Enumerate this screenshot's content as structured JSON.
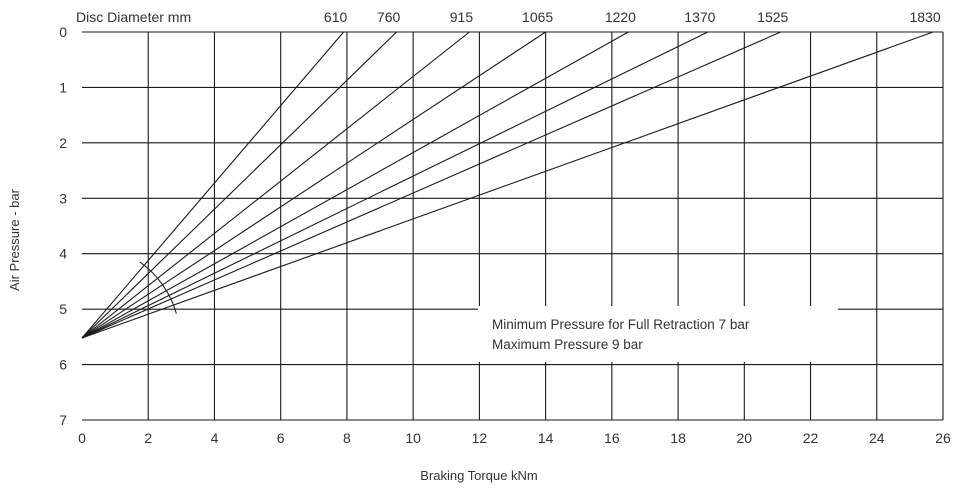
{
  "chart_data": {
    "type": "line",
    "xlabel": "Braking Torque kNm",
    "ylabel": "Air Pressure - bar",
    "xlim": [
      0,
      26
    ],
    "ylim": [
      0,
      7
    ],
    "y_inverted": true,
    "grid": true,
    "x_ticks": [
      0,
      2,
      4,
      6,
      8,
      10,
      12,
      14,
      16,
      18,
      20,
      22,
      24,
      26
    ],
    "y_ticks": [
      0,
      1,
      2,
      3,
      4,
      5,
      6,
      7
    ],
    "top_label": "Disc Diameter mm",
    "origin": {
      "x": 0,
      "y": 5.52
    },
    "series": [
      {
        "name": "610",
        "x": [
          0,
          7.9
        ],
        "y": [
          5.52,
          0
        ]
      },
      {
        "name": "760",
        "x": [
          0,
          9.5
        ],
        "y": [
          5.52,
          0
        ]
      },
      {
        "name": "915",
        "x": [
          0,
          11.7
        ],
        "y": [
          5.52,
          0
        ]
      },
      {
        "name": "1065",
        "x": [
          0,
          14.0
        ],
        "y": [
          5.52,
          0
        ]
      },
      {
        "name": "1220",
        "x": [
          0,
          16.5
        ],
        "y": [
          5.52,
          0
        ]
      },
      {
        "name": "1370",
        "x": [
          0,
          18.9
        ],
        "y": [
          5.52,
          0
        ]
      },
      {
        "name": "1525",
        "x": [
          0,
          21.1
        ],
        "y": [
          5.52,
          0
        ]
      },
      {
        "name": "1830",
        "x": [
          0,
          25.7
        ],
        "y": [
          5.52,
          0
        ]
      }
    ],
    "arc": {
      "from": {
        "x": 1.75,
        "y": 4.15
      },
      "to": {
        "x": 2.85,
        "y": 5.08
      }
    },
    "annotations": [
      "Minimum Pressure for Full Retraction 7 bar",
      "Maximum Pressure 9 bar"
    ]
  }
}
